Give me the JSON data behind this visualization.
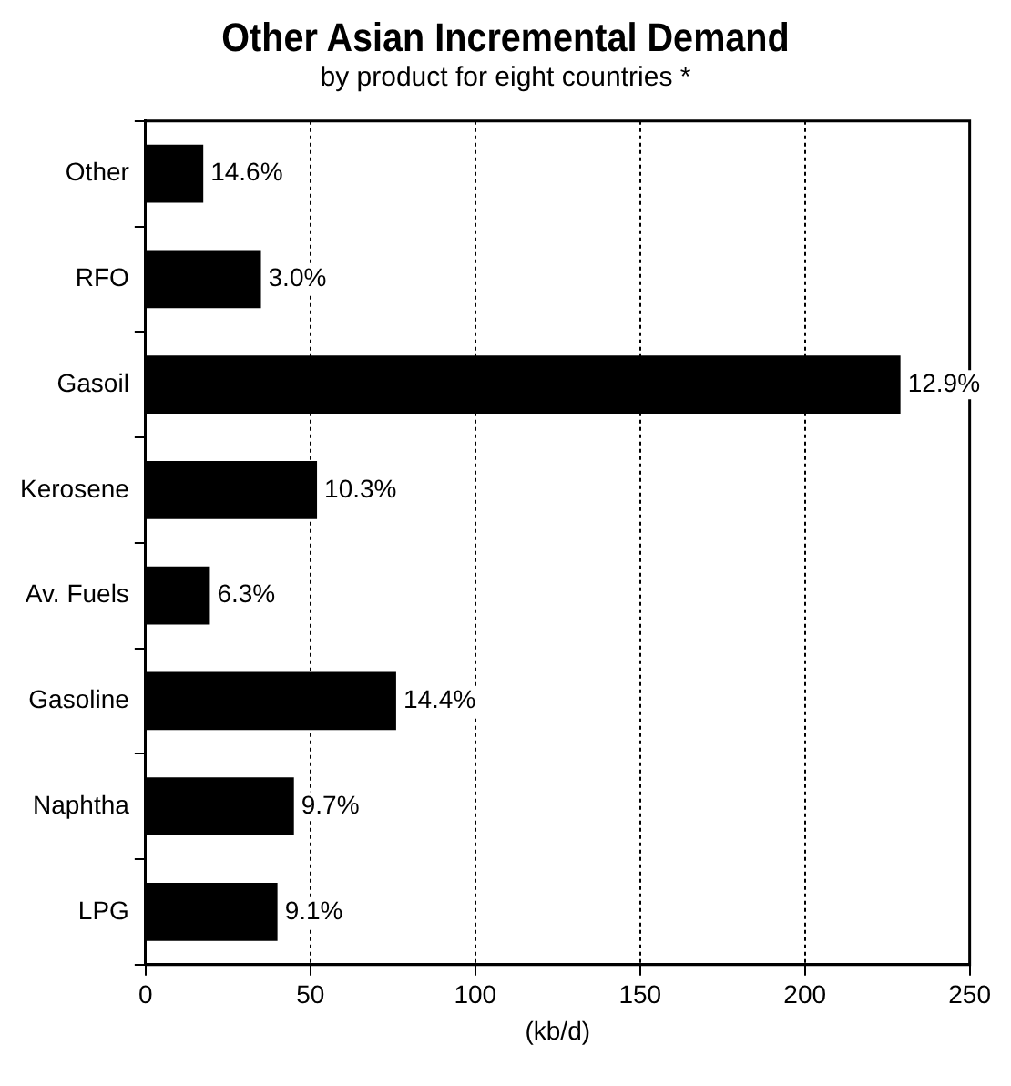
{
  "chart_data": {
    "type": "bar",
    "orientation": "horizontal",
    "title": "Other Asian Incremental Demand",
    "subtitle": "by product for eight countries *",
    "xlabel": "(kb/d)",
    "categories": [
      "Other",
      "RFO",
      "Gasoil",
      "Kerosene",
      "Av. Fuels",
      "Gasoline",
      "Naphtha",
      "LPG"
    ],
    "values": [
      17.5,
      35,
      229,
      52,
      19.5,
      76,
      45,
      40
    ],
    "annotations": [
      {
        "text": "14.6%",
        "x": 17.5,
        "y": "Other"
      },
      {
        "text": "3.0%",
        "x": 35,
        "y": "RFO"
      },
      {
        "text": "12.9%",
        "x": 229,
        "y": "Gasoil"
      },
      {
        "text": "10.3%",
        "x": 52,
        "y": "Kerosene"
      },
      {
        "text": "6.3%",
        "x": 19.5,
        "y": "Av. Fuels"
      },
      {
        "text": "14.4%",
        "x": 76,
        "y": "Gasoline"
      },
      {
        "text": "9.7%",
        "x": 45,
        "y": "Naphtha"
      },
      {
        "text": "9.1%",
        "x": 40,
        "y": "LPG"
      }
    ],
    "color": "#000000",
    "xlim": [
      0,
      250
    ],
    "xticks": [
      0,
      50,
      100,
      150,
      200,
      250
    ],
    "grid": "x",
    "legend": false
  }
}
